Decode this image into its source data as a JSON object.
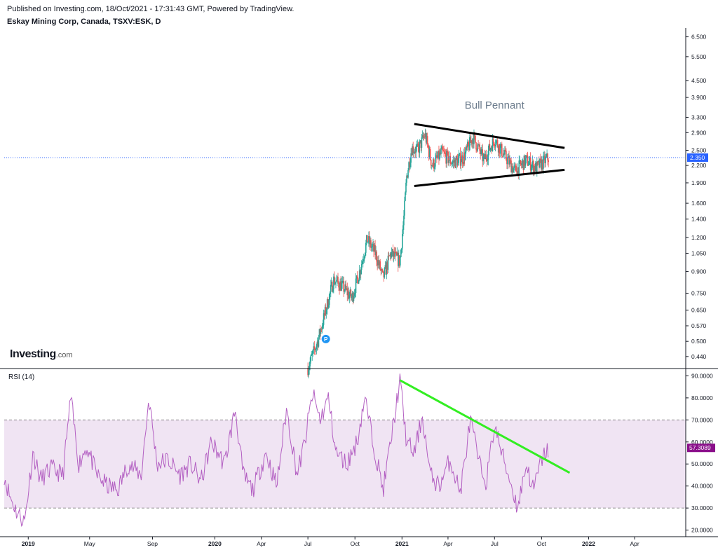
{
  "header": {
    "published": "Published on Investing.com, 18/Oct/2021 - 17:31:43 GMT, Powered by TradingView.",
    "title": "Eskay Mining Corp, Canada, TSXV:ESK, D"
  },
  "logo": {
    "brand": "Investing",
    "domain": ".com"
  },
  "colors": {
    "up": "#26a69a",
    "down": "#ef5350",
    "rsi_line": "#b35fc2",
    "rsi_band": "#f0e4f3",
    "trend_rsi": "#33ee22",
    "pennant": "#000000",
    "price_line": "#2962ff",
    "price_badge": "#2962ff",
    "rsi_badge": "#8a0e8a"
  },
  "chart_data": [
    {
      "type": "candlestick",
      "title": "Eskay Mining Corp, Canada, TSXV:ESK, D",
      "y_scale": "log",
      "y_ticks": [
        "6.500",
        "5.500",
        "4.500",
        "3.900",
        "3.300",
        "2.900",
        "2.500",
        "2.200",
        "1.900",
        "1.600",
        "1.400",
        "1.200",
        "1.050",
        "0.900",
        "0.750",
        "0.650",
        "0.570",
        "0.500",
        "0.440"
      ],
      "x_ticks": [
        "2019",
        "May",
        "Sep",
        "2020",
        "Apr",
        "Jul",
        "Oct",
        "2021",
        "Apr",
        "Jul",
        "Oct",
        "2022",
        "Apr"
      ],
      "last_price": "2.350",
      "annotation": "Bull Pennant",
      "marker": "P",
      "pennant_upper": [
        [
          "2021-01-25",
          3.12
        ],
        [
          "2021-11-15",
          2.55
        ]
      ],
      "pennant_lower": [
        [
          "2021-01-25",
          1.85
        ],
        [
          "2021-11-15",
          2.12
        ]
      ],
      "close_path": [
        [
          "2020-07-01",
          0.4
        ],
        [
          "2020-07-20",
          0.5
        ],
        [
          "2020-08-05",
          0.65
        ],
        [
          "2020-08-20",
          0.84
        ],
        [
          "2020-09-05",
          0.8
        ],
        [
          "2020-09-25",
          0.72
        ],
        [
          "2020-10-10",
          0.9
        ],
        [
          "2020-10-25",
          1.18
        ],
        [
          "2020-11-10",
          1.05
        ],
        [
          "2020-11-25",
          0.85
        ],
        [
          "2020-12-10",
          1.05
        ],
        [
          "2020-12-28",
          0.98
        ],
        [
          "2021-01-05",
          1.45
        ],
        [
          "2021-01-10",
          2.0
        ],
        [
          "2021-01-20",
          2.55
        ],
        [
          "2021-02-01",
          2.5
        ],
        [
          "2021-02-15",
          2.85
        ],
        [
          "2021-03-01",
          2.2
        ],
        [
          "2021-03-20",
          2.45
        ],
        [
          "2021-04-10",
          2.25
        ],
        [
          "2021-05-01",
          2.35
        ],
        [
          "2021-05-20",
          2.8
        ],
        [
          "2021-06-10",
          2.3
        ],
        [
          "2021-07-01",
          2.75
        ],
        [
          "2021-07-20",
          2.4
        ],
        [
          "2021-08-10",
          2.1
        ],
        [
          "2021-09-01",
          2.3
        ],
        [
          "2021-09-20",
          2.15
        ],
        [
          "2021-10-15",
          2.35
        ]
      ]
    },
    {
      "type": "line",
      "title": "RSI (14)",
      "y_ticks": [
        "90.0000",
        "80.0000",
        "70.0000",
        "60.0000",
        "50.0000",
        "40.0000",
        "30.0000",
        "20.0000"
      ],
      "band": [
        30,
        70
      ],
      "last_value": "57.3089",
      "trendline": [
        [
          "2020-12-28",
          88
        ],
        [
          "2021-11-25",
          46
        ]
      ],
      "points": [
        [
          "2018-11-15",
          45
        ],
        [
          "2018-11-25",
          36
        ],
        [
          "2018-12-10",
          28
        ],
        [
          "2018-12-25",
          24
        ],
        [
          "2019-01-10",
          55
        ],
        [
          "2019-01-25",
          43
        ],
        [
          "2019-02-15",
          48
        ],
        [
          "2019-03-10",
          45
        ],
        [
          "2019-03-25",
          80
        ],
        [
          "2019-04-10",
          50
        ],
        [
          "2019-04-25",
          58
        ],
        [
          "2019-05-15",
          45
        ],
        [
          "2019-06-05",
          40
        ],
        [
          "2019-06-25",
          38
        ],
        [
          "2019-07-15",
          50
        ],
        [
          "2019-08-10",
          45
        ],
        [
          "2019-08-25",
          80
        ],
        [
          "2019-09-10",
          50
        ],
        [
          "2019-10-01",
          52
        ],
        [
          "2019-10-25",
          45
        ],
        [
          "2019-11-15",
          50
        ],
        [
          "2019-12-05",
          42
        ],
        [
          "2019-12-25",
          60
        ],
        [
          "2020-01-20",
          50
        ],
        [
          "2020-02-10",
          75
        ],
        [
          "2020-02-25",
          45
        ],
        [
          "2020-03-15",
          38
        ],
        [
          "2020-04-10",
          55
        ],
        [
          "2020-05-01",
          40
        ],
        [
          "2020-05-20",
          75
        ],
        [
          "2020-06-10",
          45
        ],
        [
          "2020-06-25",
          60
        ],
        [
          "2020-07-10",
          82
        ],
        [
          "2020-07-25",
          70
        ],
        [
          "2020-08-10",
          80
        ],
        [
          "2020-08-25",
          55
        ],
        [
          "2020-09-15",
          50
        ],
        [
          "2020-10-05",
          60
        ],
        [
          "2020-10-20",
          80
        ],
        [
          "2020-11-10",
          55
        ],
        [
          "2020-11-25",
          38
        ],
        [
          "2020-12-10",
          60
        ],
        [
          "2020-12-28",
          88
        ],
        [
          "2021-01-10",
          60
        ],
        [
          "2021-01-25",
          55
        ],
        [
          "2021-02-10",
          72
        ],
        [
          "2021-02-25",
          45
        ],
        [
          "2021-03-15",
          40
        ],
        [
          "2021-04-05",
          52
        ],
        [
          "2021-04-25",
          37
        ],
        [
          "2021-05-15",
          70
        ],
        [
          "2021-06-01",
          50
        ],
        [
          "2021-06-15",
          42
        ],
        [
          "2021-07-01",
          68
        ],
        [
          "2021-07-15",
          55
        ],
        [
          "2021-08-01",
          42
        ],
        [
          "2021-08-15",
          30
        ],
        [
          "2021-09-01",
          50
        ],
        [
          "2021-09-15",
          38
        ],
        [
          "2021-10-01",
          52
        ],
        [
          "2021-10-15",
          57
        ]
      ]
    }
  ]
}
